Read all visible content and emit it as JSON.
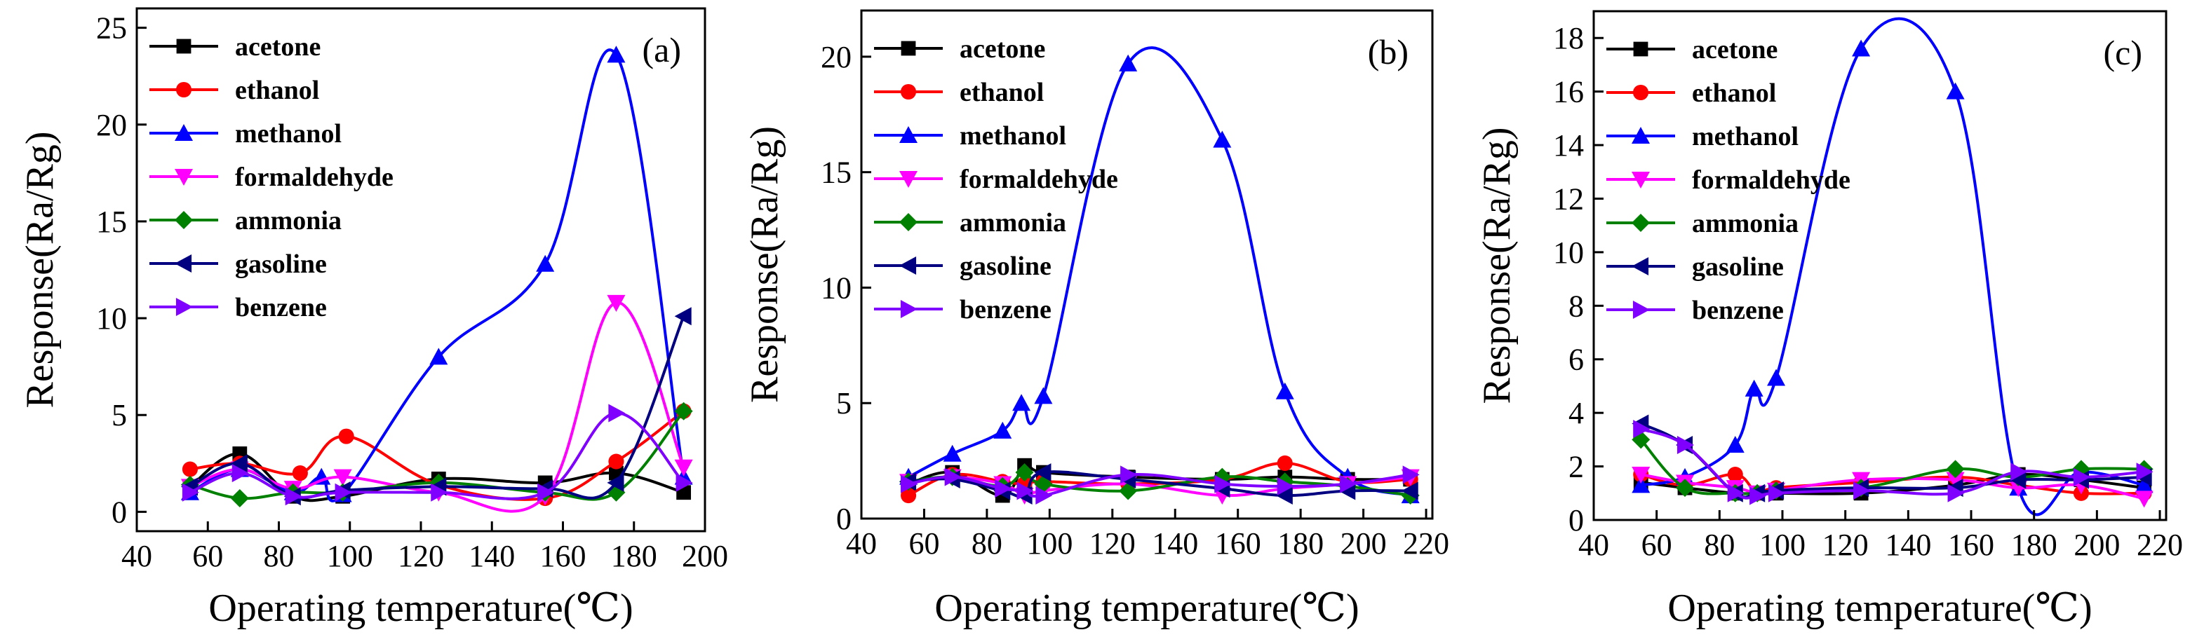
{
  "figure": {
    "description_free": true
  },
  "chart_data": [
    {
      "type": "line",
      "panel": "(a)",
      "xlabel": "Operating temperature(℃)",
      "ylabel": "Response(Ra/Rg)",
      "xlim": [
        40,
        200
      ],
      "ylim": [
        -1,
        26
      ],
      "xticks": [
        40,
        60,
        80,
        100,
        120,
        140,
        160,
        180,
        200
      ],
      "yticks": [
        0,
        5,
        10,
        15,
        20,
        25
      ],
      "legend_position": "top-left",
      "series": [
        {
          "name": "acetone",
          "color": "#000000",
          "marker": "square",
          "x": [
            55,
            69,
            84,
            98,
            125,
            155,
            175,
            194
          ],
          "y": [
            1.3,
            3.0,
            0.8,
            0.8,
            1.7,
            1.5,
            2.0,
            1.0
          ]
        },
        {
          "name": "ethanol",
          "color": "#ff0000",
          "marker": "circle",
          "x": [
            55,
            69,
            86,
            99,
            125,
            155,
            175,
            194
          ],
          "y": [
            2.2,
            2.5,
            2.0,
            3.9,
            1.4,
            0.7,
            2.6,
            5.2
          ]
        },
        {
          "name": "methanol",
          "color": "#0000ff",
          "marker": "triangle-up",
          "x": [
            55,
            69,
            84,
            92,
            98,
            125,
            155,
            175,
            194
          ],
          "y": [
            1.0,
            2.2,
            1.0,
            1.8,
            0.9,
            8.0,
            12.8,
            23.6,
            1.8
          ]
        },
        {
          "name": "formaldehyde",
          "color": "#ff00ff",
          "marker": "triangle-down",
          "x": [
            55,
            69,
            84,
            98,
            125,
            155,
            175,
            194
          ],
          "y": [
            1.3,
            2.2,
            1.2,
            1.8,
            1.0,
            0.8,
            10.8,
            2.3
          ]
        },
        {
          "name": "ammonia",
          "color": "#008000",
          "marker": "diamond",
          "x": [
            55,
            69,
            84,
            98,
            125,
            155,
            175,
            194
          ],
          "y": [
            1.4,
            0.7,
            1.0,
            1.0,
            1.5,
            1.0,
            1.0,
            5.2
          ]
        },
        {
          "name": "gasoline",
          "color": "#000080",
          "marker": "triangle-left",
          "x": [
            55,
            69,
            84,
            98,
            125,
            155,
            175,
            194
          ],
          "y": [
            1.3,
            2.5,
            0.8,
            1.1,
            1.3,
            1.2,
            1.5,
            10.1
          ]
        },
        {
          "name": "benzene",
          "color": "#8000ff",
          "marker": "triangle-right",
          "x": [
            55,
            69,
            84,
            98,
            125,
            155,
            175,
            194
          ],
          "y": [
            1.0,
            2.0,
            0.8,
            1.0,
            1.0,
            1.0,
            5.1,
            1.5
          ]
        }
      ]
    },
    {
      "type": "line",
      "panel": "(b)",
      "xlabel": "Operating temperature(℃)",
      "ylabel": "Response(Ra/Rg)",
      "xlim": [
        40,
        222
      ],
      "ylim": [
        0,
        22
      ],
      "xticks": [
        40,
        60,
        80,
        100,
        120,
        140,
        160,
        180,
        200,
        220
      ],
      "yticks": [
        0,
        5,
        10,
        15,
        20
      ],
      "legend_position": "top-left",
      "series": [
        {
          "name": "acetone",
          "color": "#000000",
          "marker": "square",
          "x": [
            55,
            69,
            85,
            92,
            98,
            125,
            155,
            175,
            195,
            215
          ],
          "y": [
            1.5,
            2.0,
            1.0,
            2.3,
            2.0,
            1.8,
            1.7,
            1.8,
            1.7,
            1.7
          ]
        },
        {
          "name": "ethanol",
          "color": "#ff0000",
          "marker": "circle",
          "x": [
            55,
            69,
            85,
            92,
            98,
            125,
            155,
            175,
            195,
            215
          ],
          "y": [
            1.0,
            1.9,
            1.6,
            1.5,
            1.6,
            1.5,
            1.7,
            2.4,
            1.6,
            1.7
          ]
        },
        {
          "name": "methanol",
          "color": "#0000ff",
          "marker": "triangle-up",
          "x": [
            55,
            69,
            85,
            91,
            98,
            125,
            155,
            175,
            195,
            215
          ],
          "y": [
            1.8,
            2.8,
            3.8,
            5.0,
            5.3,
            19.7,
            16.4,
            5.5,
            1.8,
            1.0
          ]
        },
        {
          "name": "formaldehyde",
          "color": "#ff00ff",
          "marker": "triangle-down",
          "x": [
            55,
            69,
            85,
            92,
            98,
            125,
            155,
            175,
            195,
            215
          ],
          "y": [
            1.6,
            1.8,
            1.5,
            1.0,
            1.2,
            1.5,
            1.0,
            1.3,
            1.5,
            1.8
          ]
        },
        {
          "name": "ammonia",
          "color": "#008000",
          "marker": "diamond",
          "x": [
            55,
            69,
            85,
            92,
            98,
            125,
            155,
            175,
            195,
            215
          ],
          "y": [
            1.6,
            1.8,
            1.4,
            2.0,
            1.5,
            1.2,
            1.8,
            1.6,
            1.4,
            1.0
          ]
        },
        {
          "name": "gasoline",
          "color": "#000080",
          "marker": "triangle-left",
          "x": [
            55,
            69,
            85,
            92,
            98,
            125,
            155,
            175,
            195,
            215
          ],
          "y": [
            1.6,
            1.7,
            1.2,
            1.0,
            2.0,
            1.7,
            1.3,
            1.0,
            1.2,
            1.2
          ]
        },
        {
          "name": "benzene",
          "color": "#8000ff",
          "marker": "triangle-right",
          "x": [
            55,
            69,
            85,
            92,
            98,
            125,
            155,
            175,
            195,
            215
          ],
          "y": [
            1.5,
            1.8,
            1.3,
            1.2,
            1.0,
            1.9,
            1.5,
            1.4,
            1.5,
            1.9
          ]
        }
      ]
    },
    {
      "type": "line",
      "panel": "(c)",
      "xlabel": "Operating temperature(℃)",
      "ylabel": "Response(Ra/Rg)",
      "xlim": [
        40,
        222
      ],
      "ylim": [
        0,
        19
      ],
      "xticks": [
        40,
        60,
        80,
        100,
        120,
        140,
        160,
        180,
        200,
        220
      ],
      "yticks": [
        0,
        2,
        4,
        6,
        8,
        10,
        12,
        14,
        16,
        18
      ],
      "legend_position": "top-left",
      "series": [
        {
          "name": "acetone",
          "color": "#000000",
          "marker": "square",
          "x": [
            55,
            69,
            85,
            92,
            98,
            125,
            155,
            175,
            195,
            215
          ],
          "y": [
            1.4,
            1.2,
            1.0,
            1.0,
            1.0,
            1.0,
            1.3,
            1.7,
            1.5,
            1.2
          ]
        },
        {
          "name": "ethanol",
          "color": "#ff0000",
          "marker": "circle",
          "x": [
            55,
            69,
            85,
            92,
            98,
            125,
            155,
            175,
            195,
            215
          ],
          "y": [
            1.7,
            1.3,
            1.7,
            1.0,
            1.2,
            1.4,
            1.6,
            1.3,
            1.0,
            1.0
          ]
        },
        {
          "name": "methanol",
          "color": "#0000ff",
          "marker": "triangle-up",
          "x": [
            55,
            69,
            85,
            91,
            98,
            125,
            155,
            175,
            195,
            215
          ],
          "y": [
            1.3,
            1.6,
            2.8,
            4.9,
            5.3,
            17.6,
            16.0,
            1.2,
            1.8,
            1.3
          ]
        },
        {
          "name": "formaldehyde",
          "color": "#ff00ff",
          "marker": "triangle-down",
          "x": [
            55,
            69,
            85,
            92,
            98,
            125,
            155,
            175,
            195,
            215
          ],
          "y": [
            1.7,
            1.4,
            1.2,
            1.0,
            1.1,
            1.5,
            1.5,
            1.2,
            1.3,
            0.8
          ]
        },
        {
          "name": "ammonia",
          "color": "#008000",
          "marker": "diamond",
          "x": [
            55,
            69,
            85,
            92,
            98,
            125,
            155,
            175,
            195,
            215
          ],
          "y": [
            3.0,
            1.2,
            1.0,
            1.0,
            1.1,
            1.2,
            1.9,
            1.6,
            1.9,
            1.9
          ]
        },
        {
          "name": "gasoline",
          "color": "#000080",
          "marker": "triangle-left",
          "x": [
            55,
            69,
            85,
            92,
            98,
            125,
            155,
            175,
            195,
            215
          ],
          "y": [
            3.6,
            2.8,
            1.0,
            1.0,
            1.1,
            1.2,
            1.2,
            1.5,
            1.5,
            1.6
          ]
        },
        {
          "name": "benzene",
          "color": "#8000ff",
          "marker": "triangle-right",
          "x": [
            55,
            69,
            85,
            92,
            98,
            125,
            155,
            175,
            195,
            215
          ],
          "y": [
            3.4,
            2.8,
            1.0,
            0.9,
            1.0,
            1.1,
            1.0,
            1.8,
            1.6,
            1.8
          ]
        }
      ]
    }
  ]
}
